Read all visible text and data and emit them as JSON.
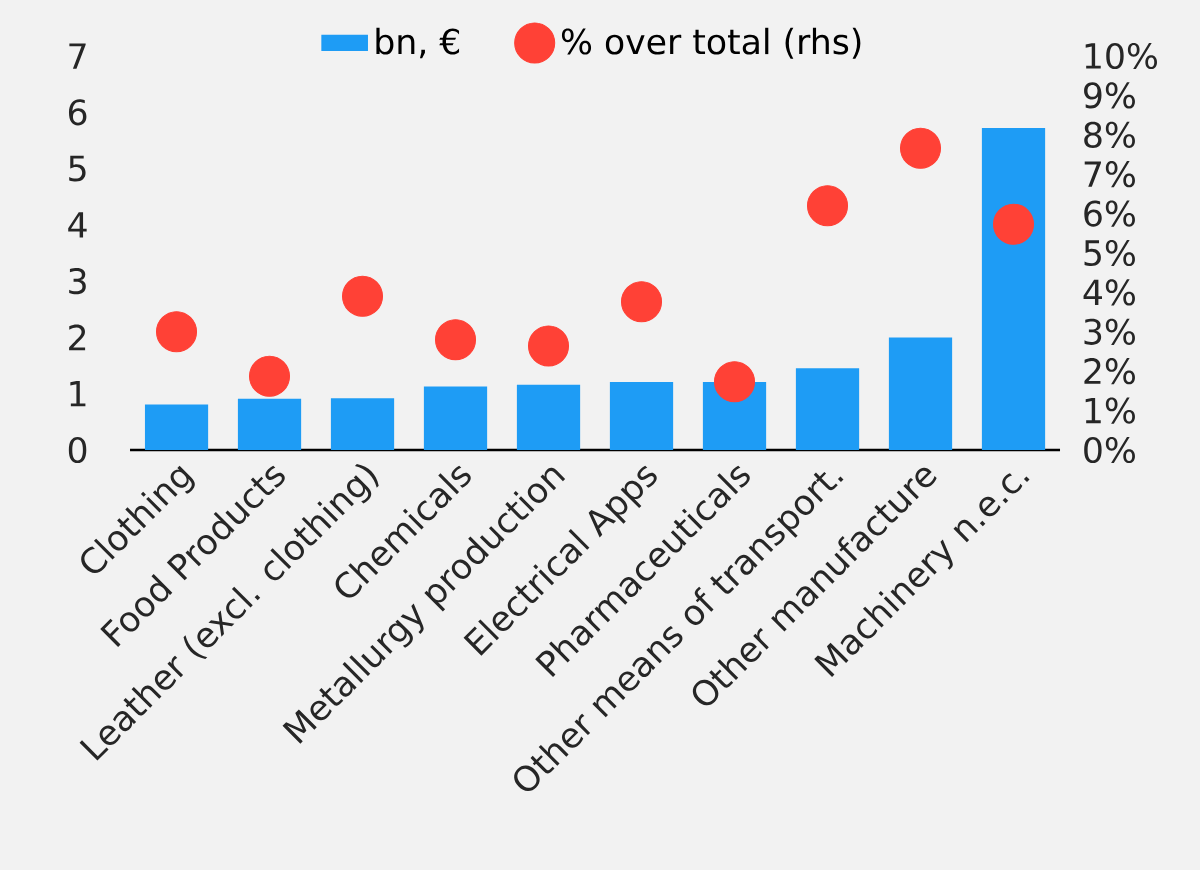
{
  "chart_data": {
    "type": "bar",
    "categories": [
      "Clothing",
      "Food Products",
      "Leather (excl. clothing)",
      "Chemicals",
      "Metallurgy production",
      "Electrical Apps",
      "Pharmaceuticals",
      "Other means of transport.",
      "Other manufacture",
      "Machinery n.e.c."
    ],
    "series": [
      {
        "name": "bn, €",
        "color": "#1e9cf5",
        "values": [
          0.81,
          0.91,
          0.92,
          1.13,
          1.16,
          1.21,
          1.21,
          1.45,
          2.0,
          5.72
        ]
      },
      {
        "name": "% over total (rhs)",
        "type": "scatter",
        "axis": "y2",
        "marker": "circle",
        "color": "#ff4136",
        "values": [
          3.0,
          1.87,
          3.9,
          2.8,
          2.64,
          3.76,
          1.73,
          6.2,
          7.66,
          5.73
        ]
      }
    ],
    "ylim": [
      0,
      7
    ],
    "yticks": [
      0,
      1,
      2,
      3,
      4,
      5,
      6,
      7
    ],
    "y2lim": [
      0,
      10
    ],
    "y2ticks": [
      {
        "value": 0,
        "label": "0%"
      },
      {
        "value": 1,
        "label": "1%"
      },
      {
        "value": 2,
        "label": "2%"
      },
      {
        "value": 3,
        "label": "3%"
      },
      {
        "value": 4,
        "label": "4%"
      },
      {
        "value": 5,
        "label": "5%"
      },
      {
        "value": 6,
        "label": "6%"
      },
      {
        "value": 7,
        "label": "7%"
      },
      {
        "value": 8,
        "label": "8%"
      },
      {
        "value": 9,
        "label": "9%"
      },
      {
        "value": 10,
        "label": "10%"
      }
    ],
    "grid": false,
    "legend": "top"
  }
}
